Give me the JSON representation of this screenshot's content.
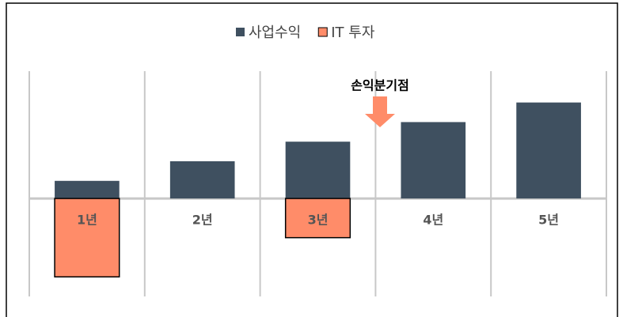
{
  "chart_data": {
    "type": "bar",
    "categories": [
      "1년",
      "2년",
      "3년",
      "4년",
      "5년"
    ],
    "series": [
      {
        "name": "사업수익",
        "color": "#3f5060",
        "values": [
          0.9,
          1.9,
          2.9,
          3.9,
          4.9
        ]
      },
      {
        "name": "IT 투자",
        "color": "#ff8c69",
        "values": [
          -4,
          null,
          -2,
          null,
          null
        ]
      }
    ],
    "annotation": "손익분기점",
    "ylim": [
      -5,
      6.5
    ]
  }
}
